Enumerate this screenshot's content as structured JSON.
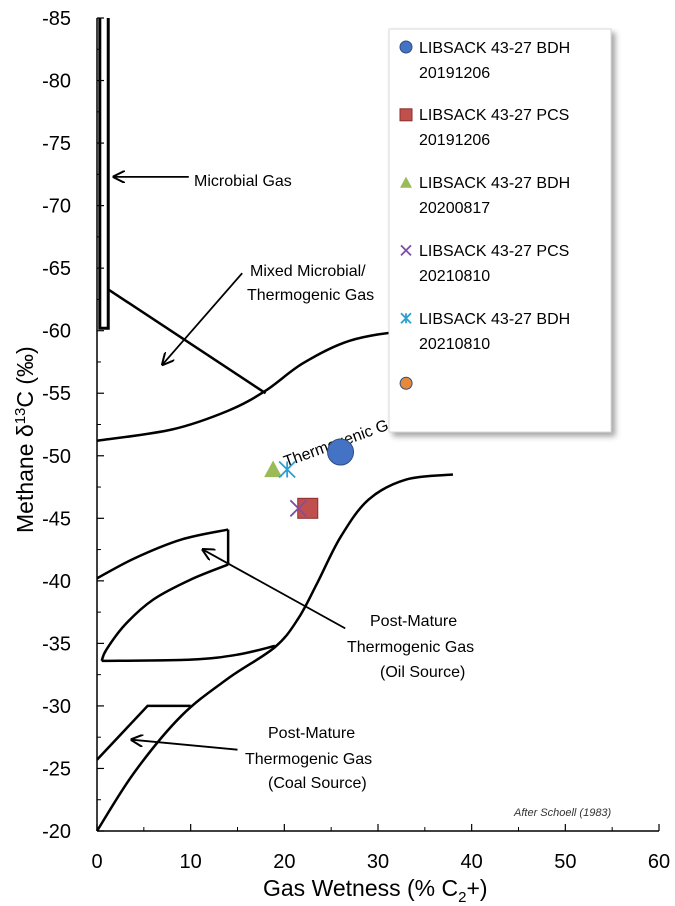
{
  "chart_data": {
    "type": "scatter",
    "xlabel_main": "Gas Wetness (% C",
    "xlabel_sub": "2",
    "xlabel_tail": "+)",
    "ylabel_main": "Methane  δ",
    "ylabel_sup": "13",
    "ylabel_tail": "C (‰)",
    "xlim": [
      0,
      60
    ],
    "ylim": [
      -20,
      -85
    ],
    "x_ticks": [
      0,
      10,
      20,
      30,
      40,
      50,
      60
    ],
    "y_ticks": [
      -85,
      -80,
      -75,
      -70,
      -65,
      -60,
      -55,
      -50,
      -45,
      -40,
      -35,
      -30,
      -25,
      -20
    ],
    "grid": false,
    "legend_position": "top-right",
    "series": [
      {
        "name_line1": "LIBSACK 43-27 BDH",
        "name_line2": "20191206",
        "marker": "circle",
        "color": "#4472C4",
        "points": [
          [
            26,
            -50.3
          ]
        ]
      },
      {
        "name_line1": "LIBSACK 43-27 PCS",
        "name_line2": "20191206",
        "marker": "square",
        "color": "#C0504D",
        "points": [
          [
            22.5,
            -45.8
          ]
        ]
      },
      {
        "name_line1": "LIBSACK 43-27 BDH",
        "name_line2": "20200817",
        "marker": "triangle",
        "color": "#9BBB59",
        "points": [
          [
            18.8,
            -48.9
          ]
        ]
      },
      {
        "name_line1": "LIBSACK 43-27 PCS",
        "name_line2": "20210810",
        "marker": "x",
        "color": "#7F4FA5",
        "points": [
          [
            21.5,
            -45.8
          ]
        ]
      },
      {
        "name_line1": "LIBSACK 43-27 BDH",
        "name_line2": "20210810",
        "marker": "asterisk",
        "color": "#2E9FD0",
        "points": [
          [
            20.3,
            -48.9
          ]
        ]
      }
    ],
    "extra_points": [
      {
        "marker": "circle",
        "color": "#E8883A",
        "points": [
          [
            33,
            -55.8
          ]
        ]
      }
    ],
    "annotations": {
      "microbial": "Microbial Gas",
      "mixed_line1": "Mixed Microbial/",
      "mixed_line2": "Thermogenic Gas",
      "thermogenic": "Thermogenic Gas",
      "pm_oil_line1": "Post-Mature",
      "pm_oil_line2": "Thermogenic Gas",
      "pm_oil_line3": "(Oil Source)",
      "pm_coal_line1": "Post-Mature",
      "pm_coal_line2": "Thermogenic Gas",
      "pm_coal_line3": "(Coal Source)",
      "credit": "After Schoell (1983)"
    },
    "boundary_curves": [
      {
        "name": "microbial-box",
        "points": [
          [
            0.3,
            -85
          ],
          [
            0.3,
            -60.2
          ],
          [
            1.2,
            -60.2
          ],
          [
            1.2,
            -85
          ]
        ]
      },
      {
        "name": "mixed-zone-line",
        "points": [
          [
            1.2,
            -63.3
          ],
          [
            18,
            -55
          ]
        ]
      },
      {
        "name": "thermogenic-upper-curve",
        "points": [
          [
            0,
            -51.2
          ],
          [
            8,
            -52.1
          ],
          [
            14,
            -53.6
          ],
          [
            18,
            -55.2
          ],
          [
            22,
            -57.4
          ],
          [
            27,
            -59.2
          ],
          [
            33,
            -60
          ],
          [
            38,
            -60.2
          ]
        ]
      },
      {
        "name": "thermogenic-lower-curve",
        "points": [
          [
            0,
            -20
          ],
          [
            4,
            -24.7
          ],
          [
            9,
            -29.2
          ],
          [
            14,
            -32.2
          ],
          [
            19,
            -34.7
          ],
          [
            21.5,
            -37
          ],
          [
            23.5,
            -39.8
          ],
          [
            26,
            -43.5
          ],
          [
            29,
            -46.5
          ],
          [
            33,
            -48.1
          ],
          [
            38,
            -48.5
          ]
        ]
      },
      {
        "name": "oil-source-upper",
        "points": [
          [
            0,
            -40.2
          ],
          [
            4,
            -41.8
          ],
          [
            9,
            -43.3
          ],
          [
            14,
            -44.1
          ]
        ]
      },
      {
        "name": "oil-source-right",
        "points": [
          [
            14,
            -44.1
          ],
          [
            14,
            -41.3
          ]
        ]
      },
      {
        "name": "oil-source-lower",
        "points": [
          [
            14,
            -41.3
          ],
          [
            10,
            -40.1
          ],
          [
            6,
            -38.5
          ],
          [
            3,
            -36.5
          ],
          [
            1,
            -34.5
          ],
          [
            0.5,
            -33.6
          ]
        ]
      },
      {
        "name": "oil-source-bottom",
        "points": [
          [
            0.5,
            -33.6
          ],
          [
            10,
            -33.7
          ],
          [
            15,
            -34.1
          ],
          [
            19,
            -34.8
          ]
        ]
      },
      {
        "name": "coal-source",
        "points": [
          [
            0,
            -25.7
          ],
          [
            5.4,
            -30
          ],
          [
            10,
            -30
          ]
        ]
      }
    ],
    "arrows": [
      {
        "name": "microbial-arrow",
        "from": [
          9.8,
          -72.3
        ],
        "to": [
          1.8,
          -72.3
        ]
      },
      {
        "name": "mixed-arrow",
        "from": [
          15.5,
          -64.6
        ],
        "to": [
          7,
          -57.3
        ]
      },
      {
        "name": "oil-source-arrow",
        "from": [
          26.5,
          -36.2
        ],
        "to": [
          11.3,
          -42.5
        ]
      },
      {
        "name": "coal-source-arrow",
        "from": [
          15,
          -26.5
        ],
        "to": [
          3.7,
          -27.3
        ]
      }
    ]
  }
}
